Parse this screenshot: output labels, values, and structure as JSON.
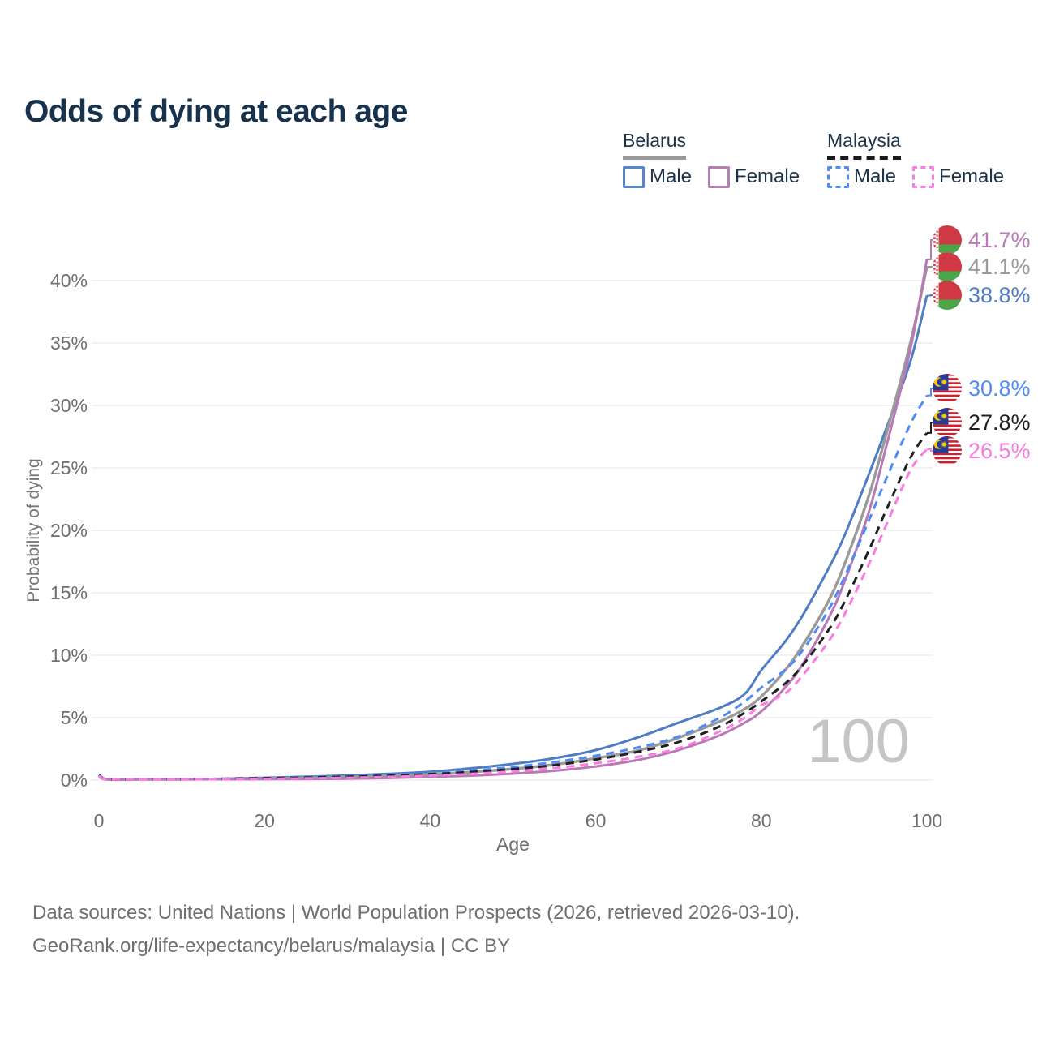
{
  "title": "Odds of dying at each age",
  "colors": {
    "title_text": "#16324d",
    "axis_text": "#6e6e6e",
    "gridline": "#e9e9e9",
    "watermark": "#c5c5c5",
    "belarus_underline": "#9a9a9a",
    "malaysia_underline": "#1a1a1a"
  },
  "legend": {
    "groups": [
      {
        "label": "Belarus",
        "line_style": "solid",
        "items": [
          {
            "label": "Male",
            "color": "#5585cb"
          },
          {
            "label": "Female",
            "color": "#b57fb3"
          }
        ]
      },
      {
        "label": "Malaysia",
        "line_style": "dashed",
        "items": [
          {
            "label": "Male",
            "color": "#4f8af8"
          },
          {
            "label": "Female",
            "color": "#fb7be0"
          }
        ]
      }
    ]
  },
  "chart_data": {
    "type": "line",
    "title": "Odds of dying at each age",
    "xlabel": "Age",
    "ylabel": "Probability of dying",
    "xlim": [
      0,
      100
    ],
    "ylim_percent": [
      0,
      43
    ],
    "x_ticks": [
      0,
      20,
      40,
      60,
      80,
      100
    ],
    "y_ticks_percent": [
      0,
      5,
      10,
      15,
      20,
      25,
      30,
      35,
      40
    ],
    "grid": "horizontal",
    "legend_position": "top-right",
    "hover_age_indicator": "100",
    "ages": [
      0,
      1,
      5,
      10,
      15,
      20,
      25,
      30,
      35,
      40,
      45,
      50,
      55,
      60,
      65,
      70,
      75,
      78,
      80,
      83,
      85,
      88,
      90,
      93,
      95,
      98,
      100
    ],
    "series": [
      {
        "name": "Belarus Male",
        "country": "belarus",
        "sex": "male",
        "style": "solid",
        "color": "#4e7dc6",
        "end_label": "38.8%",
        "end_value_percent": 38.8,
        "values_percent": [
          0.35,
          0.05,
          0.04,
          0.05,
          0.12,
          0.19,
          0.27,
          0.37,
          0.5,
          0.67,
          0.95,
          1.3,
          1.75,
          2.4,
          3.4,
          4.6,
          5.8,
          6.9,
          8.8,
          11.2,
          13.2,
          16.8,
          19.5,
          24.5,
          28.0,
          33.5,
          38.8
        ]
      },
      {
        "name": "Belarus Female",
        "country": "belarus",
        "sex": "female",
        "style": "solid",
        "color": "#b879b6",
        "end_label": "41.7%",
        "end_value_percent": 41.7,
        "values_percent": [
          0.25,
          0.03,
          0.02,
          0.03,
          0.05,
          0.07,
          0.09,
          0.12,
          0.17,
          0.25,
          0.36,
          0.52,
          0.75,
          1.1,
          1.6,
          2.4,
          3.6,
          4.6,
          5.5,
          7.5,
          9.3,
          12.8,
          15.8,
          21.5,
          26.5,
          34.5,
          41.7
        ]
      },
      {
        "name": "Belarus Both sexes",
        "country": "belarus",
        "sex": "both",
        "style": "solid",
        "color": "#9a9a9a",
        "end_label": "41.1%",
        "end_value_percent": 41.1,
        "values_percent": [
          0.3,
          0.04,
          0.03,
          0.04,
          0.09,
          0.13,
          0.18,
          0.25,
          0.34,
          0.46,
          0.65,
          0.9,
          1.25,
          1.75,
          2.35,
          3.4,
          4.7,
          5.7,
          6.7,
          8.9,
          10.8,
          14.2,
          17.2,
          22.8,
          27.5,
          35.0,
          41.1
        ]
      },
      {
        "name": "Malaysia Male",
        "country": "malaysia",
        "sex": "male",
        "style": "dashed",
        "color": "#4f8af8",
        "end_label": "30.8%",
        "end_value_percent": 30.8,
        "values_percent": [
          0.45,
          0.06,
          0.05,
          0.06,
          0.12,
          0.18,
          0.24,
          0.31,
          0.42,
          0.56,
          0.76,
          1.05,
          1.45,
          1.95,
          2.6,
          3.5,
          5.0,
          6.3,
          7.4,
          8.9,
          10.4,
          13.5,
          16.2,
          20.8,
          24.0,
          28.5,
          30.8
        ]
      },
      {
        "name": "Malaysia Both sexes",
        "country": "malaysia",
        "sex": "both",
        "style": "dashed",
        "color": "#1f1f1f",
        "end_label": "27.8%",
        "end_value_percent": 27.8,
        "values_percent": [
          0.4,
          0.05,
          0.04,
          0.05,
          0.1,
          0.15,
          0.2,
          0.27,
          0.36,
          0.48,
          0.65,
          0.88,
          1.2,
          1.65,
          2.25,
          3.05,
          4.3,
          5.4,
          6.3,
          7.8,
          9.2,
          11.9,
          14.2,
          18.4,
          21.5,
          25.8,
          27.8
        ]
      },
      {
        "name": "Malaysia Female",
        "country": "malaysia",
        "sex": "female",
        "style": "dashed",
        "color": "#fb7be0",
        "end_label": "26.5%",
        "end_value_percent": 26.5,
        "values_percent": [
          0.35,
          0.04,
          0.03,
          0.04,
          0.07,
          0.1,
          0.14,
          0.19,
          0.26,
          0.36,
          0.5,
          0.7,
          0.97,
          1.35,
          1.85,
          2.55,
          3.9,
          5.0,
          6.0,
          7.0,
          8.4,
          11.0,
          13.2,
          17.3,
          20.3,
          24.8,
          26.5
        ]
      }
    ]
  },
  "footer": {
    "line1": "Data sources: United Nations | World Population Prospects (2026, retrieved 2026-03-10).",
    "line2": "GeoRank.org/life-expectancy/belarus/malaysia | CC BY"
  }
}
